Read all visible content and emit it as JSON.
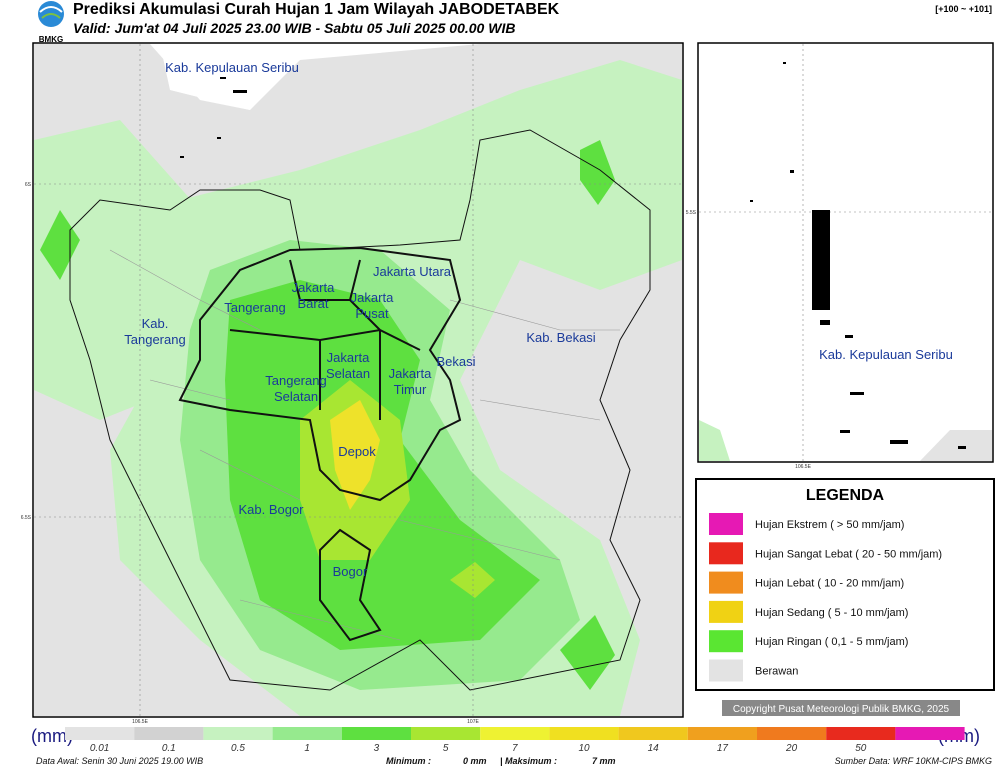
{
  "header": {
    "logo": "BMKG",
    "title": "Prediksi Akumulasi Curah Hujan 1 Jam Wilayah JABODETABEK",
    "subtitle": "Valid: Jum'at 04 Juli 2025 23.00 WIB - Sabtu 05 Juli 2025 00.00 WIB",
    "range": "[+100 ~ +101]"
  },
  "map": {
    "lat_ticks": [
      "6S",
      "6.5S"
    ],
    "lon_ticks": [
      "106.5E",
      "107E"
    ],
    "regions": [
      {
        "lines": [
          "Kab. Kepulauan Seribu"
        ]
      },
      {
        "lines": [
          "Jakarta Utara"
        ]
      },
      {
        "lines": [
          "Jakarta",
          "Barat"
        ]
      },
      {
        "lines": [
          "Jakarta",
          "Pusat"
        ]
      },
      {
        "lines": [
          "Tangerang"
        ]
      },
      {
        "lines": [
          "Kab.",
          "Tangerang"
        ]
      },
      {
        "lines": [
          "Jakarta",
          "Selatan"
        ]
      },
      {
        "lines": [
          "Jakarta",
          "Timur"
        ]
      },
      {
        "lines": [
          "Bekasi"
        ]
      },
      {
        "lines": [
          "Kab. Bekasi"
        ]
      },
      {
        "lines": [
          "Tangerang",
          "Selatan"
        ]
      },
      {
        "lines": [
          "Depok"
        ]
      },
      {
        "lines": [
          "Kab. Bogor"
        ]
      },
      {
        "lines": [
          "Bogor"
        ]
      }
    ]
  },
  "inset": {
    "lat_tick": "5.5S",
    "lon_tick": "106.5E",
    "label": "Kab. Kepulauan Seribu"
  },
  "legend": {
    "title": "LEGENDA",
    "items": [
      "Hujan Ekstrem ( > 50 mm/jam)",
      "Hujan Sangat Lebat ( 20 - 50 mm/jam)",
      "Hujan Lebat ( 10 - 20 mm/jam)",
      "Hujan Sedang ( 5 - 10 mm/jam)",
      "Hujan Ringan ( 0,1 - 5 mm/jam)",
      "Berawan"
    ]
  },
  "copyright": "Copyright Pusat Meteorologi Publik BMKG, 2025",
  "colorbar": {
    "unit_left": "(mm)",
    "unit_right": "(mm)",
    "ticks": [
      "0.01",
      "0.1",
      "0.5",
      "1",
      "3",
      "5",
      "7",
      "10",
      "14",
      "17",
      "20",
      "50"
    ]
  },
  "footer": {
    "data_awal": "Data Awal: Senin 30 Juni 2025 19.00 WIB",
    "min_label": "Minimum :",
    "min_value": "0 mm",
    "max_label": "| Maksimum :",
    "max_value": "7 mm",
    "source": "Sumber Data: WRF 10KM-CIPS BMKG"
  }
}
